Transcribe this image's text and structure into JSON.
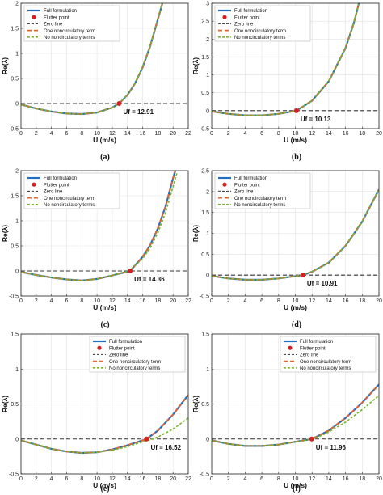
{
  "colors": {
    "full": "#1f6fc4",
    "flutter": "#d62020",
    "zero": "#333333",
    "one": "#e8622a",
    "no": "#7ab828",
    "grid": "#e2e2e2"
  },
  "chart_data": [
    {
      "type": "line",
      "panel_label": "(a)",
      "xlabel": "U (m/s)",
      "ylabel": "Re(λ)",
      "xlim": [
        0,
        22
      ],
      "ylim": [
        -0.5,
        2
      ],
      "xticks": [
        "0",
        "2",
        "4",
        "6",
        "8",
        "10",
        "12",
        "14",
        "16",
        "18",
        "20",
        "22"
      ],
      "yticks": [
        "-0.5",
        "0",
        "0.5",
        "1",
        "1.5",
        "2"
      ],
      "grid": true,
      "legend_position": "top-left",
      "legend": [
        "Full formulation",
        "Flutter point",
        "Zero line",
        "One noncirculatory term",
        "No noncirculatory terms"
      ],
      "flutter_point": {
        "x": 12.91,
        "y": 0
      },
      "flutter_label": "Uf = 12.91",
      "series": [
        {
          "name": "Full formulation",
          "x": [
            0,
            2,
            4,
            6,
            8,
            10,
            12,
            12.91,
            14,
            15,
            16,
            17,
            18,
            18.6
          ],
          "y": [
            -0.02,
            -0.1,
            -0.16,
            -0.2,
            -0.21,
            -0.18,
            -0.08,
            0,
            0.17,
            0.4,
            0.72,
            1.15,
            1.68,
            2.0
          ]
        },
        {
          "name": "One noncirculatory term",
          "x": [
            0,
            2,
            4,
            6,
            8,
            10,
            12,
            12.91,
            14,
            15,
            16,
            17,
            18,
            18.6
          ],
          "y": [
            -0.02,
            -0.1,
            -0.16,
            -0.2,
            -0.21,
            -0.18,
            -0.08,
            0,
            0.17,
            0.4,
            0.72,
            1.15,
            1.68,
            2.0
          ]
        },
        {
          "name": "No noncirculatory terms",
          "x": [
            0,
            2,
            4,
            6,
            8,
            10,
            12,
            12.91,
            14,
            15,
            16,
            17,
            18,
            18.6
          ],
          "y": [
            -0.02,
            -0.1,
            -0.16,
            -0.2,
            -0.21,
            -0.18,
            -0.08,
            0,
            0.17,
            0.4,
            0.72,
            1.15,
            1.68,
            2.0
          ]
        }
      ]
    },
    {
      "type": "line",
      "panel_label": "(b)",
      "xlabel": "U (m/s)",
      "ylabel": "Re(λ)",
      "xlim": [
        0,
        20
      ],
      "ylim": [
        -0.5,
        3
      ],
      "xticks": [
        "0",
        "2",
        "4",
        "6",
        "8",
        "10",
        "12",
        "14",
        "16",
        "18",
        "20"
      ],
      "yticks": [
        "-0.5",
        "0",
        "0.5",
        "1",
        "1.5",
        "2",
        "2.5",
        "3"
      ],
      "grid": true,
      "legend_position": "top-left",
      "legend": [
        "Full formulation",
        "Flutter point",
        "Zero line",
        "One noncirculatory term",
        "No noncirculatory terms"
      ],
      "flutter_point": {
        "x": 10.13,
        "y": 0
      },
      "flutter_label": "Uf = 10.13",
      "series": [
        {
          "name": "Full formulation",
          "x": [
            0,
            2,
            4,
            6,
            8,
            10.13,
            12,
            14,
            16,
            17,
            17.6
          ],
          "y": [
            -0.02,
            -0.09,
            -0.13,
            -0.13,
            -0.09,
            0,
            0.28,
            0.82,
            1.75,
            2.45,
            3.0
          ]
        },
        {
          "name": "One noncirculatory term",
          "x": [
            0,
            2,
            4,
            6,
            8,
            10.13,
            12,
            14,
            16,
            17,
            17.6
          ],
          "y": [
            -0.02,
            -0.09,
            -0.13,
            -0.13,
            -0.09,
            0,
            0.28,
            0.82,
            1.75,
            2.45,
            3.0
          ]
        },
        {
          "name": "No noncirculatory terms",
          "x": [
            0,
            2,
            4,
            6,
            8,
            10.13,
            12,
            14,
            16,
            17,
            17.6
          ],
          "y": [
            -0.02,
            -0.09,
            -0.13,
            -0.13,
            -0.09,
            0,
            0.28,
            0.82,
            1.75,
            2.45,
            3.0
          ]
        }
      ]
    },
    {
      "type": "line",
      "panel_label": "(c)",
      "xlabel": "U (m/s)",
      "ylabel": "Re(λ)",
      "xlim": [
        0,
        22
      ],
      "ylim": [
        -0.5,
        2
      ],
      "xticks": [
        "0",
        "2",
        "4",
        "6",
        "8",
        "10",
        "12",
        "14",
        "16",
        "18",
        "20",
        "22"
      ],
      "yticks": [
        "-0.5",
        "0",
        "0.5",
        "1",
        "1.5",
        "2"
      ],
      "grid": true,
      "legend_position": "top-left",
      "legend": [
        "Full formulation",
        "Flutter point",
        "Zero line",
        "One noncirculatory term",
        "No noncirculatory terms"
      ],
      "flutter_point": {
        "x": 14.36,
        "y": 0
      },
      "flutter_label": "Uf = 14.36",
      "series": [
        {
          "name": "Full formulation",
          "x": [
            0,
            2,
            4,
            6,
            8,
            10,
            12,
            14.36,
            16,
            17,
            18,
            19,
            20,
            20.3
          ],
          "y": [
            -0.02,
            -0.08,
            -0.13,
            -0.17,
            -0.19,
            -0.16,
            -0.09,
            0,
            0.28,
            0.52,
            0.85,
            1.28,
            1.85,
            2.0
          ]
        },
        {
          "name": "One noncirculatory term",
          "x": [
            0,
            2,
            4,
            6,
            8,
            10,
            12,
            14.36,
            16,
            17,
            18,
            19,
            20,
            20.3
          ],
          "y": [
            -0.02,
            -0.08,
            -0.13,
            -0.17,
            -0.19,
            -0.16,
            -0.09,
            0,
            0.28,
            0.52,
            0.85,
            1.28,
            1.85,
            2.0
          ]
        },
        {
          "name": "No noncirculatory terms",
          "x": [
            0,
            2,
            4,
            6,
            8,
            10,
            12,
            14.2,
            16,
            17,
            18,
            19,
            20,
            20.5
          ],
          "y": [
            -0.02,
            -0.08,
            -0.13,
            -0.17,
            -0.19,
            -0.16,
            -0.09,
            0,
            0.24,
            0.46,
            0.76,
            1.16,
            1.68,
            1.95
          ]
        }
      ]
    },
    {
      "type": "line",
      "panel_label": "(d)",
      "xlabel": "U (m/s)",
      "ylabel": "Re(λ)",
      "xlim": [
        0,
        20
      ],
      "ylim": [
        -0.5,
        2.5
      ],
      "xticks": [
        "0",
        "2",
        "4",
        "6",
        "8",
        "10",
        "12",
        "14",
        "16",
        "18",
        "20"
      ],
      "yticks": [
        "-0.5",
        "0",
        "0.5",
        "1",
        "1.5",
        "2",
        "2.5"
      ],
      "grid": true,
      "legend_position": "top-left",
      "legend": [
        "Full formulation",
        "Flutter point",
        "Zero line",
        "One noncirculatory term",
        "No noncirculatory terms"
      ],
      "flutter_point": {
        "x": 10.91,
        "y": 0
      },
      "flutter_label": "Uf = 10.91",
      "series": [
        {
          "name": "Full formulation",
          "x": [
            0,
            2,
            4,
            6,
            8,
            10.91,
            12,
            14,
            16,
            18,
            20
          ],
          "y": [
            -0.02,
            -0.08,
            -0.11,
            -0.11,
            -0.08,
            0,
            0.08,
            0.3,
            0.7,
            1.28,
            2.05
          ]
        },
        {
          "name": "One noncirculatory term",
          "x": [
            0,
            2,
            4,
            6,
            8,
            10.91,
            12,
            14,
            16,
            18,
            20
          ],
          "y": [
            -0.02,
            -0.08,
            -0.11,
            -0.11,
            -0.08,
            0,
            0.08,
            0.3,
            0.7,
            1.28,
            2.05
          ]
        },
        {
          "name": "No noncirculatory terms",
          "x": [
            0,
            2,
            4,
            6,
            8,
            10.91,
            12,
            14,
            16,
            18,
            20
          ],
          "y": [
            -0.02,
            -0.08,
            -0.11,
            -0.11,
            -0.08,
            0,
            0.08,
            0.3,
            0.7,
            1.28,
            2.05
          ]
        }
      ]
    },
    {
      "type": "line",
      "panel_label": "(e)",
      "xlabel": "U (m/s)",
      "ylabel": "Re(λ)",
      "xlim": [
        0,
        22
      ],
      "ylim": [
        -0.5,
        1.5
      ],
      "xticks": [
        "0",
        "2",
        "4",
        "6",
        "8",
        "10",
        "12",
        "14",
        "16",
        "18",
        "20",
        "22"
      ],
      "yticks": [
        "-0.5",
        "0",
        "0.5",
        "1",
        "1.5"
      ],
      "grid": true,
      "legend_position": "top-right",
      "legend": [
        "Full formulation",
        "Flutter point",
        "Zero line",
        "One noncirculatory term",
        "No noncirculatory terms"
      ],
      "flutter_point": {
        "x": 16.52,
        "y": 0
      },
      "flutter_label": "Uf = 16.52",
      "series": [
        {
          "name": "Full formulation",
          "x": [
            0,
            2,
            4,
            6,
            8,
            10,
            12,
            14,
            16.52,
            18,
            20,
            22
          ],
          "y": [
            -0.02,
            -0.08,
            -0.14,
            -0.18,
            -0.2,
            -0.19,
            -0.15,
            -0.09,
            0,
            0.12,
            0.35,
            0.63
          ]
        },
        {
          "name": "One noncirculatory term",
          "x": [
            0,
            2,
            4,
            6,
            8,
            10,
            12,
            14,
            16.52,
            18,
            20,
            22
          ],
          "y": [
            -0.02,
            -0.08,
            -0.14,
            -0.18,
            -0.2,
            -0.19,
            -0.15,
            -0.09,
            0,
            0.12,
            0.35,
            0.63
          ]
        },
        {
          "name": "No noncirculatory terms",
          "x": [
            0,
            2,
            4,
            6,
            8,
            10,
            12,
            14,
            16,
            17.3,
            18,
            20,
            22
          ],
          "y": [
            -0.02,
            -0.08,
            -0.14,
            -0.18,
            -0.2,
            -0.19,
            -0.16,
            -0.11,
            -0.04,
            0,
            0.03,
            0.14,
            0.3
          ]
        }
      ]
    },
    {
      "type": "line",
      "panel_label": "(f)",
      "xlabel": "U (m/s)",
      "ylabel": "Re(λ)",
      "xlim": [
        0,
        20
      ],
      "ylim": [
        -0.5,
        1.5
      ],
      "xticks": [
        "0",
        "2",
        "4",
        "6",
        "8",
        "10",
        "12",
        "14",
        "16",
        "18",
        "20"
      ],
      "yticks": [
        "-0.5",
        "0",
        "0.5",
        "1",
        "1.5"
      ],
      "grid": true,
      "legend_position": "top-right",
      "legend": [
        "Full formulation",
        "Flutter point",
        "Zero line",
        "One noncirculatory term",
        "No noncirculatory terms"
      ],
      "flutter_point": {
        "x": 11.96,
        "y": 0
      },
      "flutter_label": "Uf = 11.96",
      "series": [
        {
          "name": "Full formulation",
          "x": [
            0,
            2,
            4,
            6,
            8,
            10,
            11.96,
            14,
            16,
            18,
            20
          ],
          "y": [
            -0.02,
            -0.07,
            -0.1,
            -0.1,
            -0.08,
            -0.04,
            0,
            0.12,
            0.3,
            0.52,
            0.78
          ]
        },
        {
          "name": "One noncirculatory term",
          "x": [
            0,
            2,
            4,
            6,
            8,
            10,
            11.96,
            14,
            16,
            18,
            20
          ],
          "y": [
            -0.02,
            -0.07,
            -0.1,
            -0.1,
            -0.08,
            -0.04,
            0,
            0.12,
            0.3,
            0.52,
            0.78
          ]
        },
        {
          "name": "No noncirculatory terms",
          "x": [
            0,
            2,
            4,
            6,
            8,
            10,
            12.2,
            14,
            16,
            18,
            20
          ],
          "y": [
            -0.02,
            -0.07,
            -0.1,
            -0.1,
            -0.08,
            -0.04,
            0,
            0.1,
            0.24,
            0.42,
            0.62
          ]
        }
      ]
    }
  ]
}
